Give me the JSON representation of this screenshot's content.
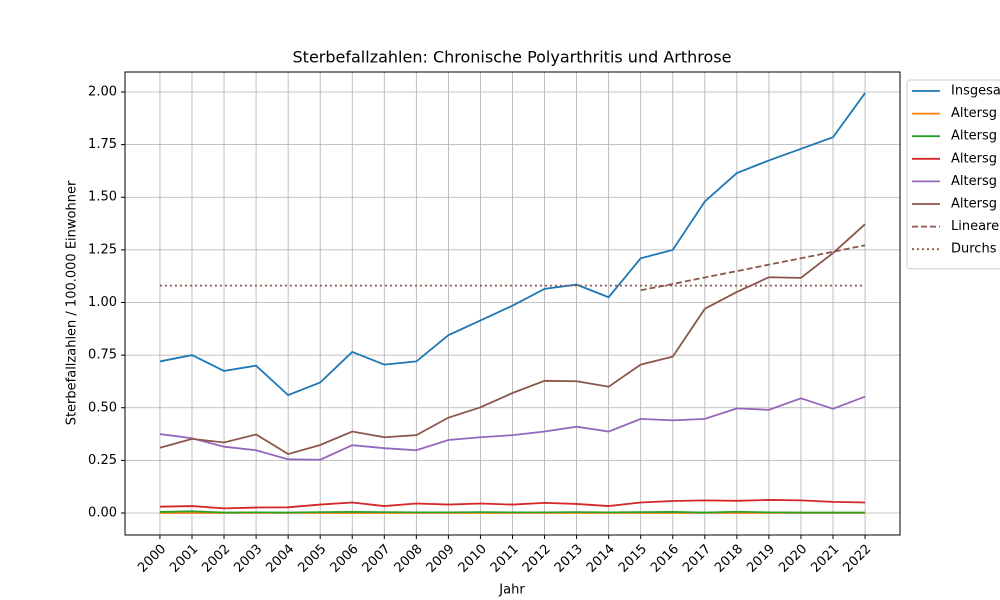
{
  "chart_data": {
    "type": "line",
    "title": "Sterbefallzahlen: Chronische Polyarthritis und Arthrose",
    "xlabel": "Jahr",
    "ylabel": "Sterbefallzahlen / 100.000 Einwohner",
    "x": [
      2000,
      2001,
      2002,
      2003,
      2004,
      2005,
      2006,
      2007,
      2008,
      2009,
      2010,
      2011,
      2012,
      2013,
      2014,
      2015,
      2016,
      2017,
      2018,
      2019,
      2020,
      2021,
      2022
    ],
    "xlim": [
      1998.91,
      2023.09
    ],
    "xticks": [
      2000,
      2001,
      2002,
      2003,
      2004,
      2005,
      2006,
      2007,
      2008,
      2009,
      2010,
      2011,
      2012,
      2013,
      2014,
      2015,
      2016,
      2017,
      2018,
      2019,
      2020,
      2021,
      2022
    ],
    "ylim": [
      -0.1045,
      2.095
    ],
    "yticks": [
      {
        "value": 0,
        "label": "0.00"
      },
      {
        "value": 0.25,
        "label": "0.25"
      },
      {
        "value": 0.5,
        "label": "0.50"
      },
      {
        "value": 0.75,
        "label": "0.75"
      },
      {
        "value": 1,
        "label": "1.00"
      },
      {
        "value": 1.25,
        "label": "1.25"
      },
      {
        "value": 1.5,
        "label": "1.50"
      },
      {
        "value": 1.75,
        "label": "1.75"
      },
      {
        "value": 2,
        "label": "2.00"
      }
    ],
    "grid": true,
    "legend": "upper right outside",
    "series": [
      {
        "name": "Insgesa",
        "color": "#1f77b4",
        "linestyle": "solid",
        "values": [
          0.72,
          0.75,
          0.675,
          0.7,
          0.56,
          0.62,
          0.765,
          0.705,
          0.72,
          0.845,
          0.915,
          0.985,
          1.065,
          1.085,
          1.025,
          1.21,
          1.25,
          1.48,
          1.615,
          1.675,
          1.73,
          1.785,
          1.995
        ]
      },
      {
        "name": "Altersg",
        "color": "#ff7f0e",
        "linestyle": "solid",
        "values": [
          0,
          0,
          0,
          0,
          0,
          0,
          0,
          0,
          0,
          0,
          0,
          0,
          0,
          0,
          0,
          0,
          0,
          0,
          0,
          0,
          0,
          0,
          0
        ]
      },
      {
        "name": "Altersg",
        "color": "#2ca02c",
        "linestyle": "solid",
        "values": [
          0.005,
          0.008,
          0.002,
          0.003,
          0.002,
          0.004,
          0.005,
          0.004,
          0.003,
          0.003,
          0.004,
          0.003,
          0.003,
          0.004,
          0.003,
          0.004,
          0.005,
          0.002,
          0.006,
          0.003,
          0.002,
          0.002,
          0.002
        ]
      },
      {
        "name": "Altersg",
        "color": "#d62728",
        "linestyle": "solid",
        "values": [
          0.03,
          0.033,
          0.022,
          0.026,
          0.027,
          0.04,
          0.05,
          0.033,
          0.045,
          0.04,
          0.045,
          0.04,
          0.048,
          0.043,
          0.033,
          0.05,
          0.057,
          0.06,
          0.058,
          0.062,
          0.06,
          0.053,
          0.05
        ]
      },
      {
        "name": "Altersg",
        "color": "#9467bd",
        "linestyle": "solid",
        "values": [
          0.375,
          0.355,
          0.315,
          0.298,
          0.255,
          0.253,
          0.322,
          0.308,
          0.298,
          0.347,
          0.36,
          0.37,
          0.387,
          0.41,
          0.387,
          0.447,
          0.44,
          0.447,
          0.497,
          0.49,
          0.545,
          0.495,
          0.553
        ]
      },
      {
        "name": "Altersg",
        "color": "#8c564b",
        "linestyle": "solid",
        "values": [
          0.31,
          0.352,
          0.335,
          0.373,
          0.28,
          0.323,
          0.387,
          0.36,
          0.37,
          0.453,
          0.502,
          0.57,
          0.628,
          0.626,
          0.6,
          0.705,
          0.743,
          0.97,
          1.05,
          1.12,
          1.117,
          1.235,
          1.372
        ]
      },
      {
        "name": "Lineare",
        "color": "#8c564b",
        "linestyle": "dashed",
        "values": [
          null,
          null,
          null,
          null,
          null,
          null,
          null,
          null,
          null,
          null,
          null,
          null,
          null,
          null,
          null,
          1.058,
          1.088,
          1.119,
          1.149,
          1.18,
          1.21,
          1.241,
          1.272
        ]
      },
      {
        "name": "Durchs",
        "color": "#8c564b",
        "linestyle": "dotted",
        "values": [
          1.08,
          1.08,
          1.08,
          1.08,
          1.08,
          1.08,
          1.08,
          1.08,
          1.08,
          1.08,
          1.08,
          1.08,
          1.08,
          1.08,
          1.08,
          1.08,
          1.08,
          1.08,
          1.08,
          1.08,
          1.08,
          1.08,
          1.08
        ]
      }
    ]
  }
}
